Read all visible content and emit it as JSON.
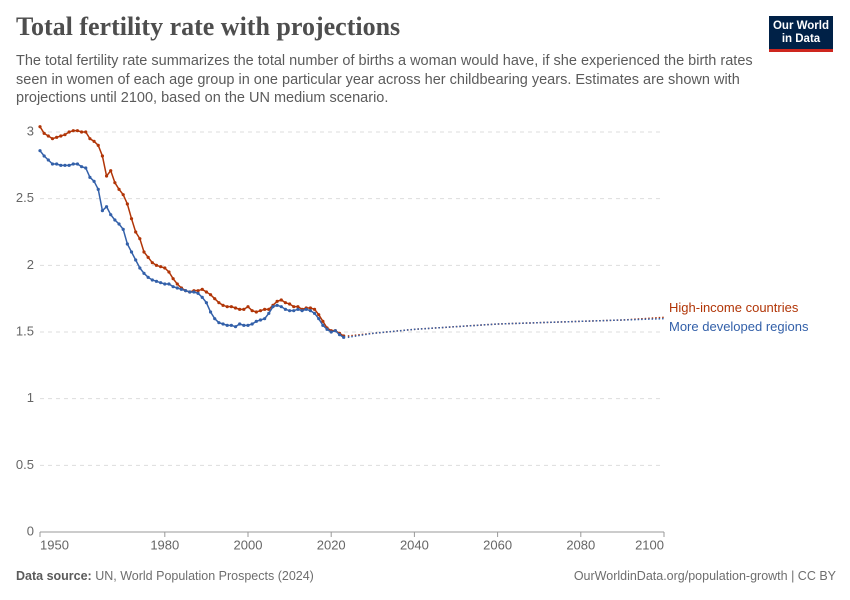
{
  "title": "Total fertility rate with projections",
  "subtitle": "The total fertility rate summarizes the total number of births a woman would have, if she experienced the birth rates seen in women of each age group in one particular year across her childbearing years. Estimates are shown with projections until 2100, based on the UN medium scenario.",
  "logo": "Our World in Data",
  "source_label": "Data source:",
  "source": "UN, World Population Prospects (2024)",
  "footer": "OurWorldinData.org/population-growth | CC BY",
  "chart_data": {
    "type": "line",
    "x": [
      1950,
      1951,
      1952,
      1953,
      1954,
      1955,
      1956,
      1957,
      1958,
      1959,
      1960,
      1961,
      1962,
      1963,
      1964,
      1965,
      1966,
      1967,
      1968,
      1969,
      1970,
      1971,
      1972,
      1973,
      1974,
      1975,
      1976,
      1977,
      1978,
      1979,
      1980,
      1981,
      1982,
      1983,
      1984,
      1985,
      1986,
      1987,
      1988,
      1989,
      1990,
      1991,
      1992,
      1993,
      1994,
      1995,
      1996,
      1997,
      1998,
      1999,
      2000,
      2001,
      2002,
      2003,
      2004,
      2005,
      2006,
      2007,
      2008,
      2009,
      2010,
      2011,
      2012,
      2013,
      2014,
      2015,
      2016,
      2017,
      2018,
      2019,
      2020,
      2021,
      2022,
      2023
    ],
    "projection_x": [
      2024,
      2030,
      2040,
      2050,
      2060,
      2070,
      2080,
      2090,
      2100
    ],
    "series": [
      {
        "name": "High-income countries",
        "color": "#b13507",
        "values": [
          3.04,
          2.99,
          2.97,
          2.95,
          2.96,
          2.97,
          2.98,
          3.0,
          3.01,
          3.01,
          3.0,
          3.0,
          2.95,
          2.93,
          2.9,
          2.82,
          2.67,
          2.71,
          2.62,
          2.57,
          2.53,
          2.46,
          2.35,
          2.25,
          2.2,
          2.1,
          2.06,
          2.02,
          2.0,
          1.99,
          1.98,
          1.95,
          1.9,
          1.86,
          1.83,
          1.81,
          1.8,
          1.81,
          1.81,
          1.82,
          1.8,
          1.78,
          1.75,
          1.72,
          1.7,
          1.69,
          1.69,
          1.68,
          1.67,
          1.67,
          1.69,
          1.66,
          1.65,
          1.66,
          1.67,
          1.67,
          1.7,
          1.73,
          1.74,
          1.72,
          1.71,
          1.69,
          1.69,
          1.67,
          1.68,
          1.68,
          1.67,
          1.63,
          1.58,
          1.53,
          1.51,
          1.51,
          1.49,
          1.47
        ],
        "projection_values": [
          1.47,
          1.49,
          1.52,
          1.54,
          1.56,
          1.57,
          1.58,
          1.59,
          1.61
        ]
      },
      {
        "name": "More developed regions",
        "color": "#3360a9",
        "values": [
          2.86,
          2.82,
          2.79,
          2.76,
          2.76,
          2.75,
          2.75,
          2.75,
          2.76,
          2.76,
          2.74,
          2.73,
          2.66,
          2.63,
          2.57,
          2.41,
          2.44,
          2.38,
          2.34,
          2.31,
          2.27,
          2.16,
          2.1,
          2.04,
          1.98,
          1.94,
          1.91,
          1.89,
          1.88,
          1.87,
          1.86,
          1.86,
          1.84,
          1.83,
          1.82,
          1.81,
          1.8,
          1.8,
          1.79,
          1.76,
          1.72,
          1.65,
          1.6,
          1.57,
          1.56,
          1.55,
          1.55,
          1.54,
          1.56,
          1.55,
          1.55,
          1.56,
          1.58,
          1.59,
          1.6,
          1.64,
          1.69,
          1.7,
          1.69,
          1.67,
          1.66,
          1.66,
          1.67,
          1.66,
          1.67,
          1.66,
          1.64,
          1.6,
          1.55,
          1.52,
          1.5,
          1.51,
          1.48,
          1.46
        ],
        "projection_values": [
          1.46,
          1.49,
          1.52,
          1.54,
          1.56,
          1.57,
          1.58,
          1.59,
          1.6
        ]
      }
    ],
    "xlim": [
      1950,
      2100
    ],
    "xticks": [
      1950,
      1980,
      2000,
      2020,
      2040,
      2060,
      2080,
      2100
    ],
    "ylim": [
      0,
      3
    ],
    "yticks": [
      0,
      0.5,
      1,
      1.5,
      2,
      2.5,
      3
    ],
    "grid": true
  }
}
